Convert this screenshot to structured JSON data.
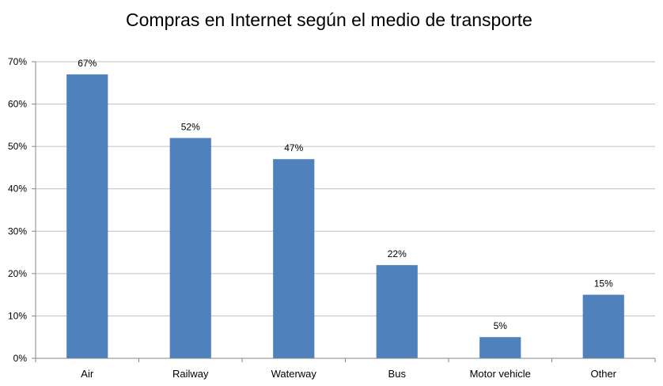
{
  "chart_data": {
    "type": "bar",
    "title": "Compras en Internet según el medio de transporte",
    "xlabel": "",
    "ylabel": "",
    "categories": [
      "Air",
      "Railway",
      "Waterway",
      "Bus",
      "Motor vehicle",
      "Other"
    ],
    "values": [
      67,
      52,
      47,
      22,
      5,
      15
    ],
    "data_labels": [
      "67%",
      "52%",
      "47%",
      "22%",
      "5%",
      "15%"
    ],
    "ylim": [
      0,
      70
    ],
    "yticks": [
      0,
      10,
      20,
      30,
      40,
      50,
      60,
      70
    ],
    "ytick_labels": [
      "0%",
      "10%",
      "20%",
      "30%",
      "40%",
      "50%",
      "60%",
      "70%"
    ],
    "grid": true,
    "legend": "none",
    "bar_color": "#4F81BD",
    "grid_color": "#BFBFBF"
  }
}
